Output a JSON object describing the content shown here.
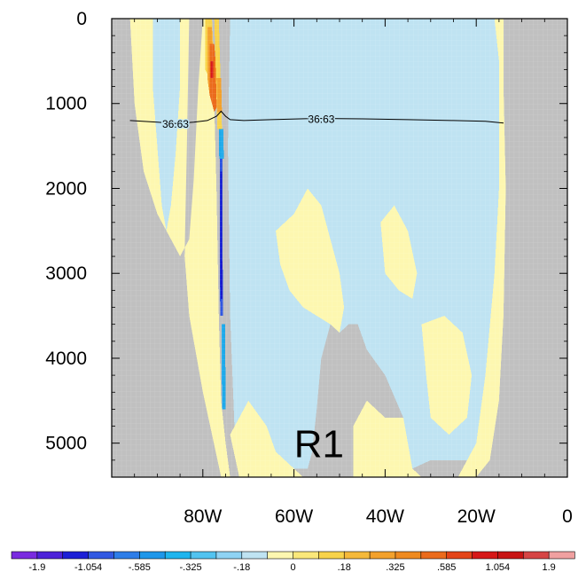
{
  "chart_data": {
    "type": "heatmap",
    "title": "",
    "xlabel": "",
    "ylabel": "",
    "x_range": [
      -100,
      0
    ],
    "y_range": [
      0,
      5400
    ],
    "y_inverted": true,
    "x_ticks": [
      {
        "value": -80,
        "label": "80W"
      },
      {
        "value": -60,
        "label": "60W"
      },
      {
        "value": -40,
        "label": "40W"
      },
      {
        "value": -20,
        "label": "20W"
      },
      {
        "value": 0,
        "label": "0"
      }
    ],
    "y_ticks": [
      {
        "value": 0,
        "label": "0"
      },
      {
        "value": 1000,
        "label": "1000"
      },
      {
        "value": 2000,
        "label": "2000"
      },
      {
        "value": 3000,
        "label": "3000"
      },
      {
        "value": 4000,
        "label": "4000"
      },
      {
        "value": 5000,
        "label": "5000"
      }
    ],
    "colors": {
      "land": "#c0c0c0",
      "light_blue": "#bfe3f2",
      "light_yellow": "#fdf7b0",
      "orange": "#f3a12c",
      "dark_orange": "#eb6b1c",
      "red": "#d61818",
      "yellow": "#f8d34a",
      "blue": "#2a52e0",
      "dark_blue": "#1212cc",
      "cyan": "#1ea9ea"
    },
    "colorbar": {
      "colors": [
        "#7a2be0",
        "#4d22d9",
        "#1c1fd6",
        "#3158e2",
        "#2d7de8",
        "#1e97ea",
        "#1fb5ee",
        "#52c3f0",
        "#8fd3f4",
        "#bfe3f2",
        "#fdf7b0",
        "#fae87a",
        "#f8d34a",
        "#f5b93a",
        "#f3a12c",
        "#ef8a1f",
        "#eb6b1c",
        "#e44418",
        "#d61818",
        "#c81414",
        "#d64545",
        "#f0a0a0"
      ],
      "labels": [
        {
          "boundary": 1,
          "text": "-1.9"
        },
        {
          "boundary": 3,
          "text": "-1.054"
        },
        {
          "boundary": 5,
          "text": "-.585"
        },
        {
          "boundary": 7,
          "text": "-.325"
        },
        {
          "boundary": 9,
          "text": "-.18"
        },
        {
          "boundary": 11,
          "text": "0"
        },
        {
          "boundary": 13,
          "text": ".18"
        },
        {
          "boundary": 15,
          "text": ".325"
        },
        {
          "boundary": 17,
          "text": ".585"
        },
        {
          "boundary": 19,
          "text": "1.054"
        },
        {
          "boundary": 21,
          "text": "1.9"
        }
      ]
    },
    "contour": {
      "label": "36.63",
      "points": [
        [
          -96,
          1200
        ],
        [
          -90,
          1220
        ],
        [
          -86,
          1235
        ],
        [
          -82,
          1220
        ],
        [
          -79,
          1200
        ],
        [
          -77,
          1150
        ],
        [
          -76,
          1090
        ],
        [
          -75,
          1150
        ],
        [
          -74,
          1190
        ],
        [
          -71,
          1200
        ],
        [
          -65,
          1190
        ],
        [
          -55,
          1175
        ],
        [
          -45,
          1180
        ],
        [
          -35,
          1190
        ],
        [
          -25,
          1200
        ],
        [
          -18,
          1210
        ],
        [
          -14,
          1230
        ]
      ],
      "label_positions": [
        [
          -86,
          1235
        ],
        [
          -54,
          1175
        ]
      ]
    },
    "region_label": {
      "text": "R1",
      "x": -54.5,
      "y": 5000
    },
    "land_polygons": [
      [
        [
          -100,
          0
        ],
        [
          -96,
          0
        ],
        [
          -95,
          1000
        ],
        [
          -93,
          1800
        ],
        [
          -90,
          2300
        ],
        [
          -88,
          2500
        ],
        [
          -86,
          2700
        ],
        [
          -85,
          2800
        ],
        [
          -83,
          2600
        ],
        [
          -82,
          1900
        ],
        [
          -81,
          800
        ],
        [
          -80,
          0
        ],
        [
          -83,
          0
        ],
        [
          -83.5,
          1500
        ],
        [
          -84,
          2800
        ],
        [
          -83,
          3500
        ],
        [
          -80,
          4400
        ],
        [
          -78,
          4900
        ],
        [
          -76,
          5400
        ],
        [
          -100,
          5400
        ]
      ],
      [
        [
          -14,
          0
        ],
        [
          -12,
          0
        ],
        [
          -9,
          0
        ],
        [
          -9,
          5400
        ],
        [
          -47,
          5400
        ],
        [
          -47,
          4800
        ],
        [
          -48,
          4200
        ],
        [
          -50,
          3700
        ],
        [
          -52,
          3600
        ],
        [
          -54,
          4000
        ],
        [
          -55,
          4600
        ],
        [
          -56,
          5100
        ],
        [
          -57,
          5400
        ],
        [
          -20,
          5400
        ],
        [
          -17,
          5200
        ],
        [
          -15,
          4500
        ],
        [
          -14,
          3500
        ],
        [
          -13.5,
          2000
        ],
        [
          -14,
          800
        ]
      ]
    ],
    "regions": [
      {
        "color": "light_yellow",
        "points": [
          [
            -96,
            0
          ],
          [
            -80,
            0
          ],
          [
            -81,
            800
          ],
          [
            -82,
            1900
          ],
          [
            -83,
            2600
          ],
          [
            -85,
            2800
          ],
          [
            -86,
            2700
          ],
          [
            -88,
            2500
          ],
          [
            -90,
            2300
          ],
          [
            -93,
            1800
          ],
          [
            -95,
            1000
          ]
        ]
      },
      {
        "color": "light_yellow",
        "points": [
          [
            -80,
            0
          ],
          [
            -78,
            0
          ],
          [
            -77,
            2000
          ],
          [
            -76.5,
            3500
          ],
          [
            -76,
            4500
          ],
          [
            -75,
            5000
          ],
          [
            -74,
            5400
          ],
          [
            -76,
            5400
          ],
          [
            -78,
            4900
          ],
          [
            -80,
            4400
          ],
          [
            -83,
            3500
          ],
          [
            -84,
            2800
          ],
          [
            -83.5,
            1500
          ]
        ]
      },
      {
        "color": "light_blue",
        "points": [
          [
            -91,
            0
          ],
          [
            -85,
            0
          ],
          [
            -85,
            800
          ],
          [
            -86,
            1600
          ],
          [
            -87,
            2200
          ],
          [
            -88,
            2500
          ],
          [
            -89,
            2200
          ],
          [
            -90,
            1500
          ],
          [
            -91,
            800
          ]
        ]
      },
      {
        "color": "light_blue",
        "points": [
          [
            -74,
            0
          ],
          [
            -16,
            0
          ],
          [
            -15,
            500
          ],
          [
            -15,
            2000
          ],
          [
            -16,
            3000
          ],
          [
            -18,
            4200
          ],
          [
            -20,
            5000
          ],
          [
            -22,
            5200
          ],
          [
            -30,
            5200
          ],
          [
            -34,
            5300
          ],
          [
            -36,
            4700
          ],
          [
            -40,
            4200
          ],
          [
            -44,
            3900
          ],
          [
            -46,
            3600
          ],
          [
            -48,
            3600
          ],
          [
            -50,
            3700
          ],
          [
            -54,
            4000
          ],
          [
            -55,
            4600
          ],
          [
            -56,
            5100
          ],
          [
            -57,
            5300
          ],
          [
            -60,
            5300
          ],
          [
            -64,
            5100
          ],
          [
            -66,
            4800
          ],
          [
            -70,
            4500
          ],
          [
            -73,
            4900
          ],
          [
            -74,
            3500
          ],
          [
            -74.5,
            1500
          ]
        ]
      },
      {
        "color": "light_yellow",
        "points": [
          [
            -64,
            2500
          ],
          [
            -60,
            2300
          ],
          [
            -57,
            2000
          ],
          [
            -54,
            2200
          ],
          [
            -52,
            2600
          ],
          [
            -50,
            3000
          ],
          [
            -49,
            3400
          ],
          [
            -50,
            3700
          ],
          [
            -52,
            3600
          ],
          [
            -55,
            3500
          ],
          [
            -58,
            3400
          ],
          [
            -61,
            3200
          ],
          [
            -63,
            2900
          ]
        ]
      },
      {
        "color": "light_yellow",
        "points": [
          [
            -41,
            2400
          ],
          [
            -38,
            2200
          ],
          [
            -35,
            2500
          ],
          [
            -33,
            3000
          ],
          [
            -34,
            3300
          ],
          [
            -37,
            3200
          ],
          [
            -40,
            3000
          ]
        ]
      },
      {
        "color": "light_yellow",
        "points": [
          [
            -32,
            3600
          ],
          [
            -27,
            3500
          ],
          [
            -23,
            3700
          ],
          [
            -21,
            4200
          ],
          [
            -22,
            4700
          ],
          [
            -26,
            4900
          ],
          [
            -30,
            4700
          ],
          [
            -31,
            4200
          ]
        ]
      },
      {
        "color": "light_yellow",
        "points": [
          [
            -74,
            4900
          ],
          [
            -70,
            4500
          ],
          [
            -66,
            4800
          ],
          [
            -64,
            5100
          ],
          [
            -60,
            5300
          ],
          [
            -58,
            5400
          ],
          [
            -72,
            5400
          ]
        ]
      },
      {
        "color": "light_yellow",
        "points": [
          [
            -47,
            4800
          ],
          [
            -44,
            4500
          ],
          [
            -40,
            4700
          ],
          [
            -36,
            4700
          ],
          [
            -34,
            5300
          ],
          [
            -32,
            5400
          ],
          [
            -47,
            5400
          ]
        ]
      },
      {
        "color": "light_yellow",
        "points": [
          [
            -20,
            5000
          ],
          [
            -18,
            4200
          ],
          [
            -16,
            3000
          ],
          [
            -15,
            2000
          ],
          [
            -15,
            500
          ],
          [
            -16,
            0
          ],
          [
            -14,
            0
          ],
          [
            -14,
            800
          ],
          [
            -13.5,
            2000
          ],
          [
            -14,
            3500
          ],
          [
            -15,
            4500
          ],
          [
            -17,
            5200
          ],
          [
            -20,
            5400
          ],
          [
            -24,
            5400
          ],
          [
            -22,
            5200
          ]
        ]
      },
      {
        "color": "yellow",
        "points": [
          [
            -79.5,
            0
          ],
          [
            -78,
            0
          ],
          [
            -77.5,
            600
          ],
          [
            -78.5,
            700
          ],
          [
            -79.5,
            600
          ]
        ]
      },
      {
        "color": "orange",
        "points": [
          [
            -79,
            100
          ],
          [
            -78,
            100
          ],
          [
            -77.5,
            800
          ],
          [
            -78.5,
            900
          ],
          [
            -79,
            700
          ]
        ]
      },
      {
        "color": "dark_orange",
        "points": [
          [
            -78.5,
            300
          ],
          [
            -77.5,
            300
          ],
          [
            -76.5,
            1000
          ],
          [
            -77.5,
            1100
          ],
          [
            -78.5,
            900
          ]
        ]
      },
      {
        "color": "red",
        "points": [
          [
            -78.3,
            500
          ],
          [
            -77.7,
            500
          ],
          [
            -77.7,
            700
          ],
          [
            -78.3,
            700
          ]
        ]
      },
      {
        "color": "yellow",
        "points": [
          [
            -77.5,
            0
          ],
          [
            -76.5,
            0
          ],
          [
            -75.8,
            1300
          ],
          [
            -76.8,
            1300
          ]
        ]
      },
      {
        "color": "orange",
        "points": [
          [
            -77,
            700
          ],
          [
            -76,
            700
          ],
          [
            -75.8,
            1100
          ],
          [
            -76.8,
            1100
          ]
        ]
      },
      {
        "color": "cyan",
        "points": [
          [
            -76.5,
            1300
          ],
          [
            -75.5,
            1300
          ],
          [
            -75.4,
            1650
          ],
          [
            -76.4,
            1650
          ]
        ]
      },
      {
        "color": "blue",
        "points": [
          [
            -76.3,
            1650
          ],
          [
            -75.7,
            1650
          ],
          [
            -75.6,
            3500
          ],
          [
            -76.2,
            3500
          ]
        ]
      },
      {
        "color": "dark_blue",
        "points": [
          [
            -76.2,
            1800
          ],
          [
            -75.8,
            1800
          ],
          [
            -75.7,
            3300
          ],
          [
            -76.1,
            3300
          ]
        ]
      },
      {
        "color": "cyan",
        "points": [
          [
            -75.9,
            3600
          ],
          [
            -75.1,
            3600
          ],
          [
            -75,
            4600
          ],
          [
            -75.8,
            4600
          ]
        ]
      }
    ]
  }
}
